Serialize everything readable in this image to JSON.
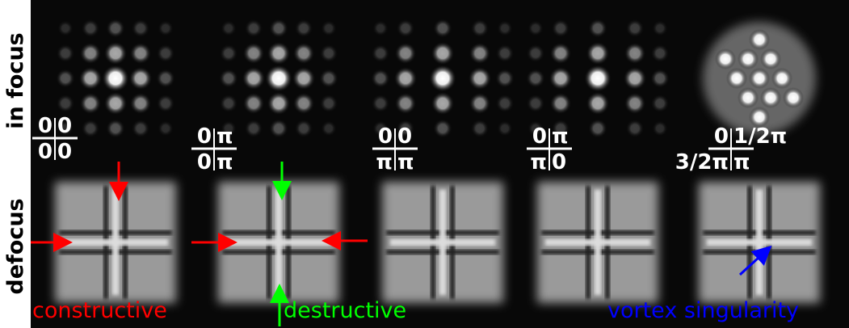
{
  "row_labels": [
    "in focus",
    "defocus"
  ],
  "phase_labels": [
    {
      "top_left": "0",
      "top_right": "0",
      "bottom_left": "0",
      "bottom_right": "0"
    },
    {
      "top_left": "0",
      "top_right": "π",
      "bottom_left": "0",
      "bottom_right": "π"
    },
    {
      "top_left": "0",
      "top_right": "0",
      "bottom_left": "π",
      "bottom_right": "π"
    },
    {
      "top_left": "0",
      "top_right": "π",
      "bottom_left": "π",
      "bottom_right": "0"
    },
    {
      "top_left": "0",
      "top_right": "1/2π",
      "bottom_left": "3/2π",
      "bottom_right": "π"
    }
  ],
  "annotations": {
    "constructive": "constructive",
    "destructive": "destructive",
    "vortex": "vortex singularity"
  }
}
